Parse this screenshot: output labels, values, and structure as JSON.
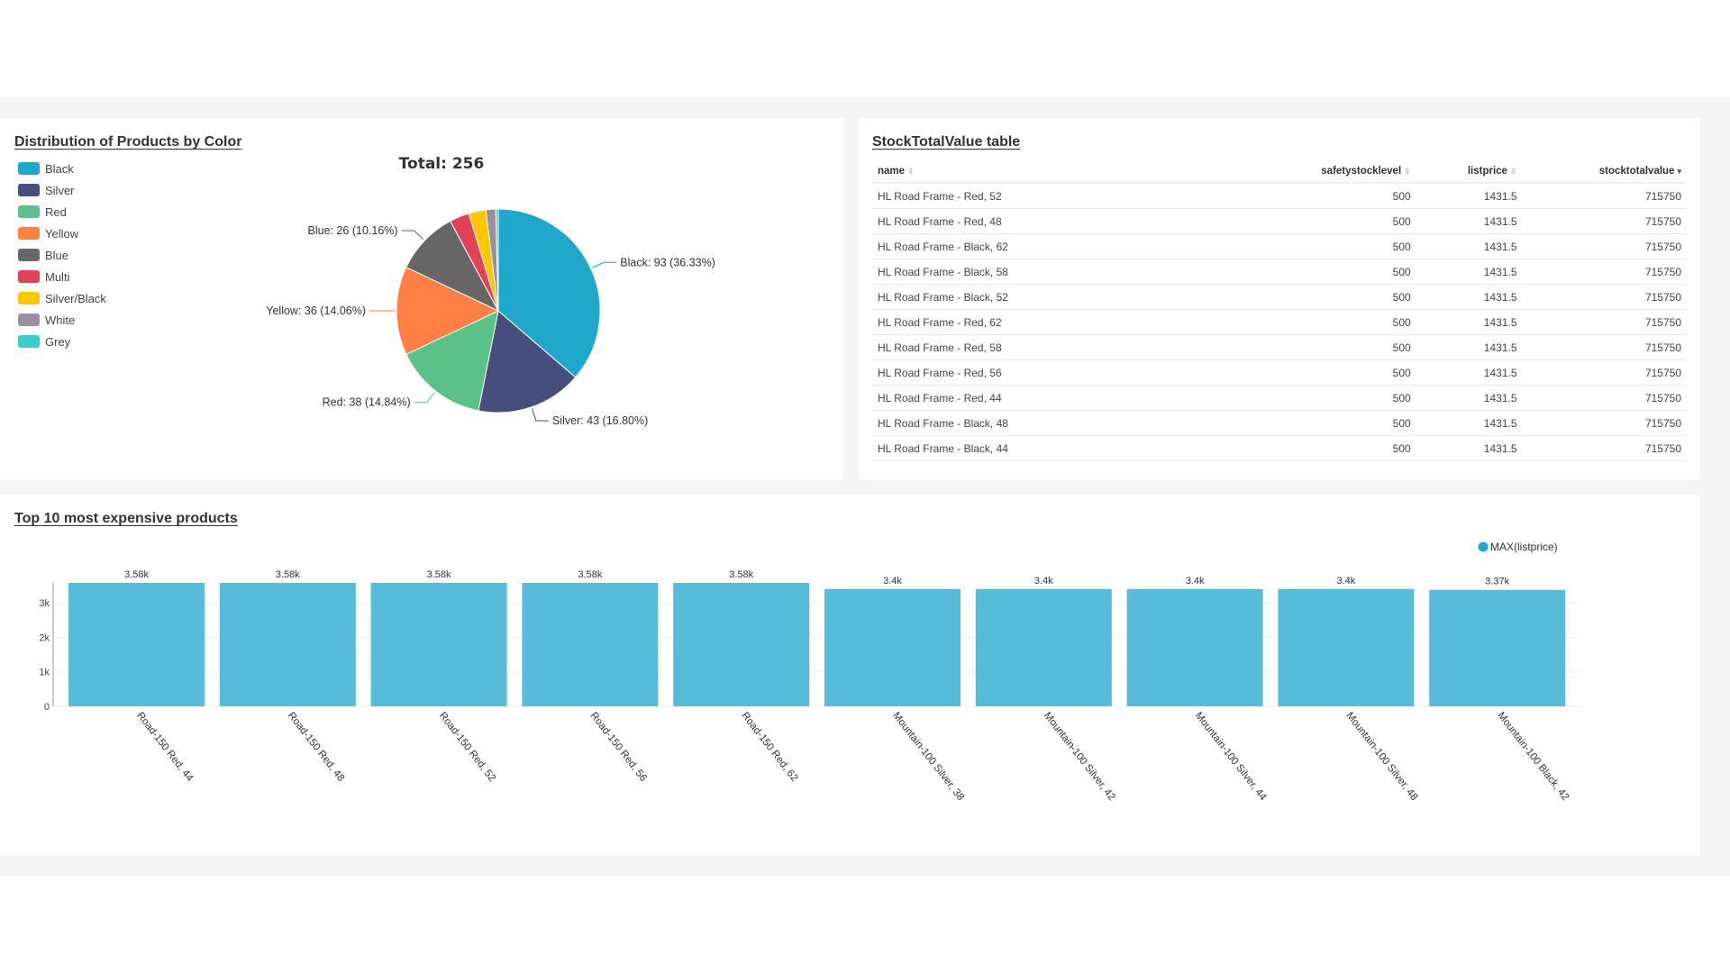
{
  "pie_panel": {
    "title": "Distribution of Products by Color",
    "total_label": "Total: 256",
    "chart_data": {
      "type": "pie",
      "total": 256,
      "legend_placement": "top-left",
      "slices": [
        {
          "name": "Black",
          "value": 93,
          "label": "Black: 93 (36.33%)",
          "color": "#1FA8C9"
        },
        {
          "name": "Silver",
          "value": 43,
          "label": "Silver: 43 (16.80%)",
          "color": "#454E7C"
        },
        {
          "name": "Red",
          "value": 38,
          "label": "Red: 38 (14.84%)",
          "color": "#5AC189"
        },
        {
          "name": "Yellow",
          "value": 36,
          "label": "Yellow: 36 (14.06%)",
          "color": "#FF7F44"
        },
        {
          "name": "Blue",
          "value": 26,
          "label": "Blue: 26 (10.16%)",
          "color": "#666666"
        },
        {
          "name": "Multi",
          "value": 8,
          "label": "",
          "color": "#E04355"
        },
        {
          "name": "Silver/Black",
          "value": 7,
          "label": "",
          "color": "#FCC700"
        },
        {
          "name": "White",
          "value": 4,
          "label": "",
          "color": "#9A8FA0"
        },
        {
          "name": "Grey",
          "value": 1,
          "label": "",
          "color": "#3CCCCB"
        }
      ]
    }
  },
  "table_panel": {
    "title": "StockTotalValue table",
    "columns": [
      "name",
      "safetystocklevel",
      "listprice",
      "stocktotalvalue"
    ],
    "sorted_column": "stocktotalvalue",
    "rows": [
      [
        "HL Road Frame - Red, 52",
        "500",
        "1431.5",
        "715750"
      ],
      [
        "HL Road Frame - Red, 48",
        "500",
        "1431.5",
        "715750"
      ],
      [
        "HL Road Frame - Black, 62",
        "500",
        "1431.5",
        "715750"
      ],
      [
        "HL Road Frame - Black, 58",
        "500",
        "1431.5",
        "715750"
      ],
      [
        "HL Road Frame - Black, 52",
        "500",
        "1431.5",
        "715750"
      ],
      [
        "HL Road Frame - Red, 62",
        "500",
        "1431.5",
        "715750"
      ],
      [
        "HL Road Frame - Red, 58",
        "500",
        "1431.5",
        "715750"
      ],
      [
        "HL Road Frame - Red, 56",
        "500",
        "1431.5",
        "715750"
      ],
      [
        "HL Road Frame - Red, 44",
        "500",
        "1431.5",
        "715750"
      ],
      [
        "HL Road Frame - Black, 48",
        "500",
        "1431.5",
        "715750"
      ],
      [
        "HL Road Frame - Black, 44",
        "500",
        "1431.5",
        "715750"
      ]
    ]
  },
  "bar_panel": {
    "title": "Top 10 most expensive products",
    "chart_data": {
      "type": "bar",
      "color": "#56BCD8",
      "legend_placement": "top-right",
      "series": [
        {
          "name": "MAX(listprice)",
          "values": [
            3578.27,
            3578.27,
            3578.27,
            3578.27,
            3578.27,
            3399.99,
            3399.99,
            3399.99,
            3399.99,
            3374.99
          ]
        }
      ],
      "categories": [
        "Road-150 Red, 44",
        "Road-150 Red, 48",
        "Road-150 Red, 52",
        "Road-150 Red, 56",
        "Road-150 Red, 62",
        "Mountain-100 Silver, 38",
        "Mountain-100 Silver, 42",
        "Mountain-100 Silver, 44",
        "Mountain-100 Silver, 48",
        "Mountain-100 Black, 42"
      ],
      "data_labels": [
        "3.58k",
        "3.58k",
        "3.58k",
        "3.58k",
        "3.58k",
        "3.4k",
        "3.4k",
        "3.4k",
        "3.4k",
        "3.37k"
      ],
      "yticks": [
        "0",
        "1k",
        "2k",
        "3k"
      ],
      "ylim": [
        0,
        3578.27
      ],
      "grid": true
    }
  }
}
